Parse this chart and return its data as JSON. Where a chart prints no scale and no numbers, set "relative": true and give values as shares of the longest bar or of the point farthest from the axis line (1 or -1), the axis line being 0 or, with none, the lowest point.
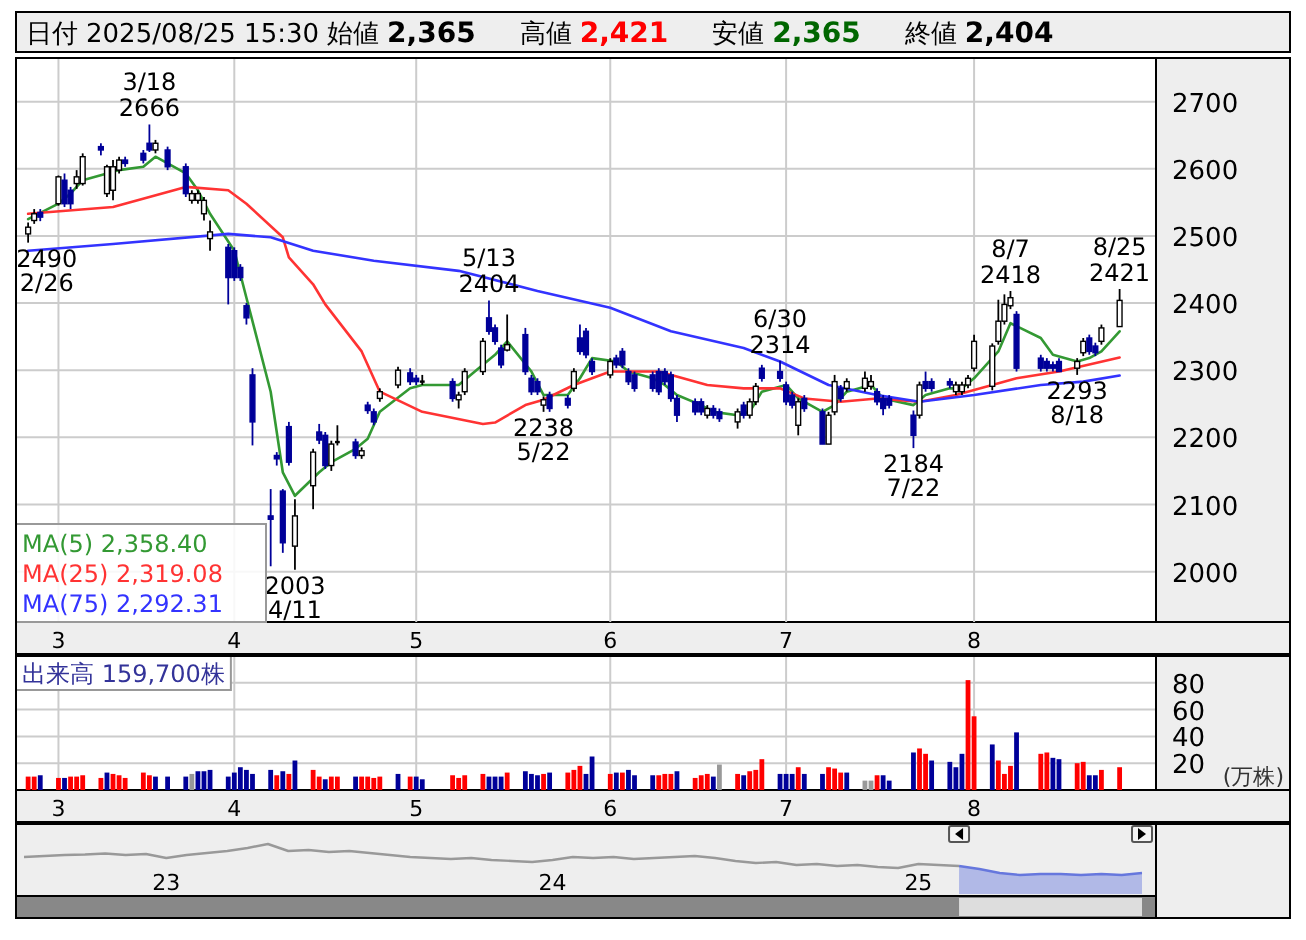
{
  "chart_data": [
    {
      "type": "other",
      "annotations": [
        "日付",
        "2025/08/25 15:30",
        "始値",
        "2,365",
        "高値",
        "2,421",
        "安値",
        "2,365",
        "終値",
        "2,404"
      ]
    },
    {
      "type": "candlestick",
      "x": [
        "2025-02-26",
        "2025-02-27",
        "2025-02-28",
        "2025-03-03",
        "2025-03-04",
        "2025-03-05",
        "2025-03-06",
        "2025-03-07",
        "2025-03-10",
        "2025-03-11",
        "2025-03-12",
        "2025-03-13",
        "2025-03-14",
        "2025-03-17",
        "2025-03-18",
        "2025-03-19",
        "2025-03-21",
        "2025-03-24",
        "2025-03-25",
        "2025-03-26",
        "2025-03-27",
        "2025-03-28",
        "2025-03-31",
        "2025-04-01",
        "2025-04-02",
        "2025-04-03",
        "2025-04-04",
        "2025-04-07",
        "2025-04-08",
        "2025-04-09",
        "2025-04-10",
        "2025-04-11",
        "2025-04-14",
        "2025-04-15",
        "2025-04-16",
        "2025-04-17",
        "2025-04-18",
        "2025-04-21",
        "2025-04-22",
        "2025-04-23",
        "2025-04-24",
        "2025-04-25",
        "2025-04-28",
        "2025-04-30",
        "2025-05-01",
        "2025-05-02",
        "2025-05-07",
        "2025-05-08",
        "2025-05-09",
        "2025-05-12",
        "2025-05-13",
        "2025-05-14",
        "2025-05-15",
        "2025-05-16",
        "2025-05-19",
        "2025-05-20",
        "2025-05-21",
        "2025-05-22",
        "2025-05-23",
        "2025-05-26",
        "2025-05-27",
        "2025-05-28",
        "2025-05-29",
        "2025-05-30",
        "2025-06-02",
        "2025-06-03",
        "2025-06-04",
        "2025-06-05",
        "2025-06-06",
        "2025-06-09",
        "2025-06-10",
        "2025-06-11",
        "2025-06-12",
        "2025-06-13",
        "2025-06-16",
        "2025-06-17",
        "2025-06-18",
        "2025-06-19",
        "2025-06-20",
        "2025-06-23",
        "2025-06-24",
        "2025-06-25",
        "2025-06-26",
        "2025-06-27",
        "2025-06-30",
        "2025-07-01",
        "2025-07-02",
        "2025-07-03",
        "2025-07-04",
        "2025-07-07",
        "2025-07-08",
        "2025-07-09",
        "2025-07-10",
        "2025-07-11",
        "2025-07-14",
        "2025-07-15",
        "2025-07-16",
        "2025-07-17",
        "2025-07-18",
        "2025-07-22",
        "2025-07-23",
        "2025-07-24",
        "2025-07-25",
        "2025-07-28",
        "2025-07-29",
        "2025-07-30",
        "2025-07-31",
        "2025-08-01",
        "2025-08-04",
        "2025-08-05",
        "2025-08-06",
        "2025-08-07",
        "2025-08-08",
        "2025-08-12",
        "2025-08-13",
        "2025-08-14",
        "2025-08-15",
        "2025-08-18",
        "2025-08-19",
        "2025-08-20",
        "2025-08-21",
        "2025-08-22",
        "2025-08-25"
      ],
      "ohlc": [
        [
          2503,
          2520,
          2490,
          2513
        ],
        [
          2523,
          2540,
          2518,
          2533
        ],
        [
          2535,
          2540,
          2522,
          2528
        ],
        [
          2548,
          2590,
          2545,
          2588
        ],
        [
          2583,
          2593,
          2543,
          2548
        ],
        [
          2568,
          2573,
          2540,
          2548
        ],
        [
          2578,
          2598,
          2570,
          2588
        ],
        [
          2578,
          2623,
          2575,
          2618
        ],
        [
          2633,
          2638,
          2620,
          2628
        ],
        [
          2563,
          2606,
          2558,
          2603
        ],
        [
          2568,
          2613,
          2553,
          2603
        ],
        [
          2598,
          2618,
          2593,
          2613
        ],
        [
          2613,
          2618,
          2603,
          2608
        ],
        [
          2623,
          2628,
          2608,
          2613
        ],
        [
          2638,
          2666,
          2625,
          2628
        ],
        [
          2628,
          2643,
          2623,
          2638
        ],
        [
          2628,
          2633,
          2598,
          2603
        ],
        [
          2603,
          2608,
          2558,
          2563
        ],
        [
          2553,
          2568,
          2548,
          2563
        ],
        [
          2553,
          2568,
          2548,
          2563
        ],
        [
          2533,
          2558,
          2523,
          2553
        ],
        [
          2496,
          2523,
          2478,
          2506
        ],
        [
          2483,
          2488,
          2398,
          2438
        ],
        [
          2478,
          2483,
          2433,
          2438
        ],
        [
          2453,
          2458,
          2433,
          2438
        ],
        [
          2396,
          2400,
          2368,
          2378
        ],
        [
          2293,
          2303,
          2188,
          2223
        ],
        [
          2083,
          2123,
          2008,
          2078
        ],
        [
          2173,
          2178,
          2158,
          2168
        ],
        [
          2120,
          2123,
          2028,
          2043
        ],
        [
          2216,
          2223,
          2158,
          2163
        ],
        [
          2038,
          2108,
          2003,
          2083
        ],
        [
          2128,
          2183,
          2093,
          2178
        ],
        [
          2208,
          2220,
          2190,
          2196
        ],
        [
          2203,
          2208,
          2153,
          2158
        ],
        [
          2158,
          2195,
          2150,
          2190
        ],
        [
          2193,
          2218,
          2188,
          2193
        ],
        [
          2193,
          2198,
          2168,
          2173
        ],
        [
          2173,
          2185,
          2168,
          2180
        ],
        [
          2248,
          2253,
          2235,
          2240
        ],
        [
          2238,
          2243,
          2218,
          2223
        ],
        [
          2258,
          2273,
          2253,
          2268
        ],
        [
          2278,
          2305,
          2273,
          2300
        ],
        [
          2296,
          2303,
          2278,
          2283
        ],
        [
          2288,
          2293,
          2278,
          2283
        ],
        [
          2283,
          2293,
          2278,
          2283
        ],
        [
          2283,
          2288,
          2253,
          2258
        ],
        [
          2256,
          2268,
          2243,
          2263
        ],
        [
          2268,
          2303,
          2263,
          2298
        ],
        [
          2298,
          2348,
          2293,
          2343
        ],
        [
          2378,
          2404,
          2353,
          2358
        ],
        [
          2363,
          2368,
          2338,
          2343
        ],
        [
          2333,
          2338,
          2303,
          2308
        ],
        [
          2330,
          2383,
          2328,
          2338
        ],
        [
          2353,
          2363,
          2293,
          2298
        ],
        [
          2288,
          2293,
          2263,
          2268
        ],
        [
          2283,
          2288,
          2263,
          2268
        ],
        [
          2248,
          2261,
          2238,
          2256
        ],
        [
          2263,
          2268,
          2238,
          2243
        ],
        [
          2258,
          2263,
          2243,
          2248
        ],
        [
          2273,
          2303,
          2268,
          2298
        ],
        [
          2348,
          2368,
          2323,
          2328
        ],
        [
          2358,
          2363,
          2318,
          2323
        ],
        [
          2313,
          2318,
          2293,
          2298
        ],
        [
          2293,
          2318,
          2288,
          2313
        ],
        [
          2318,
          2323,
          2303,
          2308
        ],
        [
          2328,
          2333,
          2303,
          2308
        ],
        [
          2298,
          2303,
          2278,
          2283
        ],
        [
          2293,
          2298,
          2268,
          2273
        ],
        [
          2293,
          2298,
          2268,
          2273
        ],
        [
          2298,
          2303,
          2263,
          2268
        ],
        [
          2298,
          2303,
          2278,
          2283
        ],
        [
          2293,
          2298,
          2253,
          2258
        ],
        [
          2258,
          2263,
          2223,
          2233
        ],
        [
          2253,
          2258,
          2233,
          2238
        ],
        [
          2253,
          2258,
          2233,
          2238
        ],
        [
          2233,
          2248,
          2228,
          2243
        ],
        [
          2243,
          2248,
          2228,
          2233
        ],
        [
          2238,
          2243,
          2223,
          2228
        ],
        [
          2223,
          2243,
          2213,
          2238
        ],
        [
          2248,
          2253,
          2228,
          2233
        ],
        [
          2233,
          2258,
          2228,
          2253
        ],
        [
          2253,
          2281,
          2248,
          2276
        ],
        [
          2303,
          2308,
          2283,
          2288
        ],
        [
          2298,
          2314,
          2283,
          2288
        ],
        [
          2278,
          2283,
          2248,
          2253
        ],
        [
          2263,
          2268,
          2243,
          2248
        ],
        [
          2218,
          2258,
          2203,
          2253
        ],
        [
          2258,
          2263,
          2238,
          2243
        ],
        [
          2238,
          2243,
          2190,
          2190
        ],
        [
          2190,
          2238,
          2190,
          2233
        ],
        [
          2238,
          2293,
          2233,
          2283
        ],
        [
          2273,
          2278,
          2253,
          2258
        ],
        [
          2273,
          2288,
          2268,
          2283
        ],
        [
          2273,
          2298,
          2268,
          2288
        ],
        [
          2276,
          2293,
          2271,
          2283
        ],
        [
          2268,
          2273,
          2248,
          2253
        ],
        [
          2258,
          2263,
          2233,
          2243
        ],
        [
          2258,
          2263,
          2243,
          2248
        ],
        [
          2233,
          2240,
          2184,
          2203
        ],
        [
          2233,
          2283,
          2228,
          2278
        ],
        [
          2283,
          2298,
          2268,
          2273
        ],
        [
          2283,
          2288,
          2268,
          2273
        ],
        [
          2283,
          2288,
          2273,
          2278
        ],
        [
          2268,
          2283,
          2263,
          2278
        ],
        [
          2268,
          2283,
          2263,
          2278
        ],
        [
          2278,
          2293,
          2273,
          2288
        ],
        [
          2303,
          2353,
          2298,
          2343
        ],
        [
          2276,
          2340,
          2270,
          2336
        ],
        [
          2343,
          2405,
          2338,
          2373
        ],
        [
          2373,
          2413,
          2368,
          2398
        ],
        [
          2396,
          2418,
          2391,
          2408
        ],
        [
          2383,
          2388,
          2298,
          2303
        ],
        [
          2318,
          2323,
          2298,
          2303
        ],
        [
          2313,
          2318,
          2298,
          2303
        ],
        [
          2308,
          2313,
          2298,
          2303
        ],
        [
          2313,
          2318,
          2298,
          2298
        ],
        [
          2303,
          2318,
          2293,
          2313
        ],
        [
          2326,
          2348,
          2321,
          2343
        ],
        [
          2348,
          2353,
          2323,
          2328
        ],
        [
          2336,
          2341,
          2321,
          2326
        ],
        [
          2343,
          2368,
          2338,
          2363
        ],
        [
          2365,
          2421,
          2365,
          2404
        ]
      ],
      "series": [
        {
          "type": "line",
          "name": "MA(5) 2,358.40",
          "color": "#339933",
          "x": [
            "2025-02-26",
            "2025-03-03",
            "2025-03-05",
            "2025-03-07",
            "2025-03-11",
            "2025-03-13",
            "2025-03-17",
            "2025-03-19",
            "2025-03-24",
            "2025-03-26",
            "2025-03-28",
            "2025-04-01",
            "2025-04-03",
            "2025-04-07",
            "2025-04-09",
            "2025-04-11",
            "2025-04-15",
            "2025-04-17",
            "2025-04-21",
            "2025-04-23",
            "2025-04-25",
            "2025-04-30",
            "2025-05-02",
            "2025-05-08",
            "2025-05-12",
            "2025-05-14",
            "2025-05-16",
            "2025-05-20",
            "2025-05-22",
            "2025-05-26",
            "2025-05-28",
            "2025-05-30",
            "2025-06-03",
            "2025-06-05",
            "2025-06-09",
            "2025-06-11",
            "2025-06-13",
            "2025-06-17",
            "2025-06-19",
            "2025-06-23",
            "2025-06-25",
            "2025-06-27",
            "2025-07-01",
            "2025-07-03",
            "2025-07-07",
            "2025-07-09",
            "2025-07-11",
            "2025-07-15",
            "2025-07-17",
            "2025-07-22",
            "2025-07-24",
            "2025-07-28",
            "2025-07-30",
            "2025-08-01",
            "2025-08-05",
            "2025-08-07",
            "2025-08-12",
            "2025-08-14",
            "2025-08-18",
            "2025-08-20",
            "2025-08-22",
            "2025-08-25"
          ],
          "values": [
            2525,
            2548,
            2563,
            2583,
            2593,
            2598,
            2603,
            2618,
            2593,
            2568,
            2533,
            2478,
            2408,
            2268,
            2148,
            2113,
            2148,
            2163,
            2183,
            2198,
            2238,
            2273,
            2278,
            2278,
            2308,
            2323,
            2343,
            2298,
            2263,
            2263,
            2288,
            2318,
            2313,
            2298,
            2288,
            2278,
            2263,
            2248,
            2238,
            2233,
            2238,
            2268,
            2278,
            2258,
            2238,
            2248,
            2268,
            2278,
            2258,
            2248,
            2263,
            2273,
            2273,
            2288,
            2328,
            2370,
            2348,
            2323,
            2313,
            2318,
            2328,
            2358
          ]
        },
        {
          "type": "line",
          "name": "MA(25) 2,319.08",
          "color": "#ff3333",
          "x": [
            "2025-02-26",
            "2025-03-12",
            "2025-03-24",
            "2025-03-31",
            "2025-04-03",
            "2025-04-09",
            "2025-04-10",
            "2025-04-14",
            "2025-04-16",
            "2025-04-22",
            "2025-04-25",
            "2025-05-02",
            "2025-05-12",
            "2025-05-14",
            "2025-05-19",
            "2025-05-22",
            "2025-05-27",
            "2025-06-02",
            "2025-06-10",
            "2025-06-18",
            "2025-06-24",
            "2025-06-30",
            "2025-07-04",
            "2025-07-10",
            "2025-07-16",
            "2025-07-23",
            "2025-07-29",
            "2025-08-04",
            "2025-08-08",
            "2025-08-15",
            "2025-08-25"
          ],
          "values": [
            2533,
            2543,
            2573,
            2568,
            2548,
            2498,
            2468,
            2428,
            2398,
            2328,
            2268,
            2238,
            2220,
            2222,
            2248,
            2256,
            2278,
            2298,
            2298,
            2278,
            2273,
            2273,
            2258,
            2253,
            2258,
            2253,
            2263,
            2278,
            2288,
            2298,
            2319
          ]
        },
        {
          "type": "line",
          "name": "MA(75) 2,292.31",
          "color": "#3333ff",
          "x": [
            "2025-02-26",
            "2025-03-12",
            "2025-03-31",
            "2025-04-07",
            "2025-04-14",
            "2025-04-24",
            "2025-05-08",
            "2025-05-21",
            "2025-06-02",
            "2025-06-12",
            "2025-06-24",
            "2025-06-30",
            "2025-07-08",
            "2025-07-16",
            "2025-07-23",
            "2025-08-01",
            "2025-08-12",
            "2025-08-19",
            "2025-08-25"
          ],
          "values": [
            2478,
            2488,
            2503,
            2498,
            2478,
            2463,
            2448,
            2418,
            2393,
            2358,
            2333,
            2313,
            2278,
            2263,
            2253,
            2263,
            2278,
            2283,
            2292
          ]
        }
      ],
      "xlim": [
        "2025-02-24",
        "2025-08-31"
      ],
      "ylim": [
        1925,
        2765
      ],
      "yticks": [
        2000,
        2100,
        2200,
        2300,
        2400,
        2500,
        2600,
        2700
      ],
      "xticks": [
        {
          "value": "2025-03-03",
          "label": "3"
        },
        {
          "value": "2025-04-01",
          "label": "4"
        },
        {
          "value": "2025-05-01",
          "label": "5"
        },
        {
          "value": "2025-06-02",
          "label": "6"
        },
        {
          "value": "2025-07-01",
          "label": "7"
        },
        {
          "value": "2025-08-01",
          "label": "8"
        }
      ],
      "grid": true,
      "legend": "bottom left",
      "annotations": [
        {
          "text": "3/18\n2666",
          "x": "2025-03-18",
          "y": 2666
        },
        {
          "text": "2490\n2/26",
          "x": "2025-02-26",
          "y": 2490
        },
        {
          "text": "2003\n4/11",
          "x": "2025-04-11",
          "y": 2003
        },
        {
          "text": "5/13\n2404",
          "x": "2025-05-13",
          "y": 2404
        },
        {
          "text": "2238\n5/22",
          "x": "2025-05-22",
          "y": 2238
        },
        {
          "text": "6/30\n2314",
          "x": "2025-06-30",
          "y": 2314
        },
        {
          "text": "2184\n7/22",
          "x": "2025-07-22",
          "y": 2184
        },
        {
          "text": "8/7\n2418",
          "x": "2025-08-07",
          "y": 2418
        },
        {
          "text": "2293\n8/18",
          "x": "2025-08-18",
          "y": 2293
        },
        {
          "text": "8/25\n2421",
          "x": "2025-08-25",
          "y": 2421
        }
      ]
    },
    {
      "type": "bar",
      "title": "出来高 159,700株",
      "ylabel": "(万株)",
      "x": [
        "2025-02-26",
        "2025-02-27",
        "2025-02-28",
        "2025-03-03",
        "2025-03-04",
        "2025-03-05",
        "2025-03-06",
        "2025-03-07",
        "2025-03-10",
        "2025-03-11",
        "2025-03-12",
        "2025-03-13",
        "2025-03-14",
        "2025-03-17",
        "2025-03-18",
        "2025-03-19",
        "2025-03-21",
        "2025-03-24",
        "2025-03-25",
        "2025-03-26",
        "2025-03-27",
        "2025-03-28",
        "2025-03-31",
        "2025-04-01",
        "2025-04-02",
        "2025-04-03",
        "2025-04-04",
        "2025-04-07",
        "2025-04-08",
        "2025-04-09",
        "2025-04-10",
        "2025-04-11",
        "2025-04-14",
        "2025-04-15",
        "2025-04-16",
        "2025-04-17",
        "2025-04-18",
        "2025-04-21",
        "2025-04-22",
        "2025-04-23",
        "2025-04-24",
        "2025-04-25",
        "2025-04-28",
        "2025-04-30",
        "2025-05-01",
        "2025-05-02",
        "2025-05-07",
        "2025-05-08",
        "2025-05-09",
        "2025-05-12",
        "2025-05-13",
        "2025-05-14",
        "2025-05-15",
        "2025-05-16",
        "2025-05-19",
        "2025-05-20",
        "2025-05-21",
        "2025-05-22",
        "2025-05-23",
        "2025-05-26",
        "2025-05-27",
        "2025-05-28",
        "2025-05-29",
        "2025-05-30",
        "2025-06-02",
        "2025-06-03",
        "2025-06-04",
        "2025-06-05",
        "2025-06-06",
        "2025-06-09",
        "2025-06-10",
        "2025-06-11",
        "2025-06-12",
        "2025-06-13",
        "2025-06-16",
        "2025-06-17",
        "2025-06-18",
        "2025-06-19",
        "2025-06-20",
        "2025-06-23",
        "2025-06-24",
        "2025-06-25",
        "2025-06-26",
        "2025-06-27",
        "2025-06-30",
        "2025-07-01",
        "2025-07-02",
        "2025-07-03",
        "2025-07-04",
        "2025-07-07",
        "2025-07-08",
        "2025-07-09",
        "2025-07-10",
        "2025-07-11",
        "2025-07-14",
        "2025-07-15",
        "2025-07-16",
        "2025-07-17",
        "2025-07-18",
        "2025-07-22",
        "2025-07-23",
        "2025-07-24",
        "2025-07-25",
        "2025-07-28",
        "2025-07-29",
        "2025-07-30",
        "2025-07-31",
        "2025-08-01",
        "2025-08-04",
        "2025-08-05",
        "2025-08-06",
        "2025-08-07",
        "2025-08-08",
        "2025-08-12",
        "2025-08-13",
        "2025-08-14",
        "2025-08-15",
        "2025-08-18",
        "2025-08-19",
        "2025-08-20",
        "2025-08-21",
        "2025-08-22",
        "2025-08-25"
      ],
      "values": [
        10,
        10,
        11,
        9,
        9,
        10,
        10,
        11,
        9,
        13,
        12,
        11,
        9,
        13,
        11,
        10,
        10,
        10,
        12,
        14,
        14,
        15,
        10,
        13,
        17,
        15,
        12,
        15,
        11,
        14,
        12,
        22,
        15,
        10,
        8,
        10,
        10,
        10,
        10,
        10,
        9,
        10,
        12,
        10,
        10,
        8,
        11,
        9,
        11,
        12,
        10,
        10,
        10,
        13,
        14,
        12,
        11,
        12,
        13,
        13,
        15,
        18,
        12,
        25,
        12,
        13,
        13,
        15,
        11,
        11,
        11,
        12,
        12,
        14,
        9,
        11,
        12,
        10,
        19,
        12,
        11,
        14,
        15,
        23,
        12,
        12,
        12,
        17,
        12,
        12,
        17,
        16,
        13,
        13,
        7,
        7,
        11,
        11,
        7,
        28,
        31,
        27,
        22,
        21,
        17,
        27,
        82,
        55,
        34,
        22,
        12,
        18,
        43,
        27,
        28,
        24,
        23,
        20,
        21,
        11,
        11,
        15,
        17
      ],
      "colors": [
        "#ff0000",
        "#ff0000",
        "#000099",
        "#ff0000",
        "#000099",
        "#ff0000",
        "#ff0000",
        "#ff0000",
        "#ff0000",
        "#000099",
        "#ff0000",
        "#ff0000",
        "#ff0000",
        "#ff0000",
        "#ff0000",
        "#000099",
        "#000099",
        "#000099",
        "#999999",
        "#000099",
        "#000099",
        "#000099",
        "#000099",
        "#000099",
        "#000099",
        "#000099",
        "#000099",
        "#000099",
        "#ff0000",
        "#000099",
        "#ff0000",
        "#000099",
        "#ff0000",
        "#ff0000",
        "#000099",
        "#ff0000",
        "#ff0000",
        "#000099",
        "#ff0000",
        "#ff0000",
        "#ff0000",
        "#ff0000",
        "#000099",
        "#ff0000",
        "#000099",
        "#000099",
        "#ff0000",
        "#ff0000",
        "#ff0000",
        "#ff0000",
        "#000099",
        "#000099",
        "#000099",
        "#ff0000",
        "#000099",
        "#000099",
        "#000099",
        "#ff0000",
        "#000099",
        "#ff0000",
        "#ff0000",
        "#ff0000",
        "#000099",
        "#000099",
        "#ff0000",
        "#000099",
        "#ff0000",
        "#000099",
        "#000099",
        "#000099",
        "#ff0000",
        "#ff0000",
        "#ff0000",
        "#000099",
        "#ff0000",
        "#ff0000",
        "#ff0000",
        "#000099",
        "#999999",
        "#ff0000",
        "#000099",
        "#ff0000",
        "#ff0000",
        "#ff0000",
        "#000099",
        "#000099",
        "#000099",
        "#ff0000",
        "#000099",
        "#000099",
        "#ff0000",
        "#ff0000",
        "#ff0000",
        "#000099",
        "#999999",
        "#999999",
        "#ff0000",
        "#000099",
        "#000099",
        "#000099",
        "#ff0000",
        "#ff0000",
        "#000099",
        "#000099",
        "#000099",
        "#000099",
        "#ff0000",
        "#ff0000",
        "#000099",
        "#ff0000",
        "#ff0000",
        "#ff0000",
        "#000099",
        "#ff0000",
        "#ff0000",
        "#000099",
        "#000099",
        "#ff0000",
        "#ff0000",
        "#000099",
        "#000099",
        "#ff0000",
        "#ff0000"
      ],
      "xlim": [
        "2025-02-24",
        "2025-08-31"
      ],
      "ylim": [
        0,
        100
      ],
      "yticks": [
        20,
        40,
        60,
        80
      ],
      "xticks": [
        {
          "value": "2025-03-03",
          "label": "3"
        },
        {
          "value": "2025-04-01",
          "label": "4"
        },
        {
          "value": "2025-05-01",
          "label": "5"
        },
        {
          "value": "2025-06-02",
          "label": "6"
        },
        {
          "value": "2025-07-01",
          "label": "7"
        },
        {
          "value": "2025-08-01",
          "label": "8"
        }
      ],
      "grid": true
    },
    {
      "type": "line",
      "relative": true,
      "categories": [
        null,
        null,
        null,
        null,
        null,
        null,
        null,
        "23",
        null,
        null,
        null,
        null,
        null,
        null,
        null,
        null,
        null,
        null,
        null,
        null,
        null,
        null,
        null,
        null,
        null,
        null,
        "24",
        null,
        null,
        null,
        null,
        null,
        null,
        null,
        null,
        null,
        null,
        null,
        null,
        null,
        null,
        null,
        null,
        null,
        "25",
        null,
        null,
        null,
        null,
        null,
        null,
        null,
        null,
        null,
        null,
        null
      ],
      "series": [
        {
          "type": "line",
          "color": "#999999",
          "values": [
            0.74,
            0.76,
            0.78,
            0.79,
            0.81,
            0.78,
            0.8,
            0.72,
            0.78,
            0.82,
            0.86,
            0.92,
            1.0,
            0.86,
            0.88,
            0.84,
            0.86,
            0.82,
            0.78,
            0.74,
            0.72,
            0.7,
            0.72,
            0.68,
            0.66,
            0.64,
            0.68,
            0.74,
            0.72,
            0.74,
            0.7,
            0.72,
            0.74,
            0.76,
            0.72,
            0.66,
            0.62,
            0.64,
            0.58,
            0.6,
            0.56,
            0.58,
            0.54,
            0.52,
            0.6,
            0.58,
            0.56,
            null,
            null,
            null,
            null,
            null,
            null,
            null,
            null,
            null
          ]
        },
        {
          "type": "area",
          "color": "#6677dd",
          "values": [
            null,
            null,
            null,
            null,
            null,
            null,
            null,
            null,
            null,
            null,
            null,
            null,
            null,
            null,
            null,
            null,
            null,
            null,
            null,
            null,
            null,
            null,
            null,
            null,
            null,
            null,
            null,
            null,
            null,
            null,
            null,
            null,
            null,
            null,
            null,
            null,
            null,
            null,
            null,
            null,
            null,
            null,
            null,
            null,
            null,
            null,
            0.56,
            0.5,
            0.42,
            0.38,
            0.4,
            0.4,
            0.38,
            0.4,
            0.38,
            0.42
          ]
        }
      ]
    }
  ]
}
